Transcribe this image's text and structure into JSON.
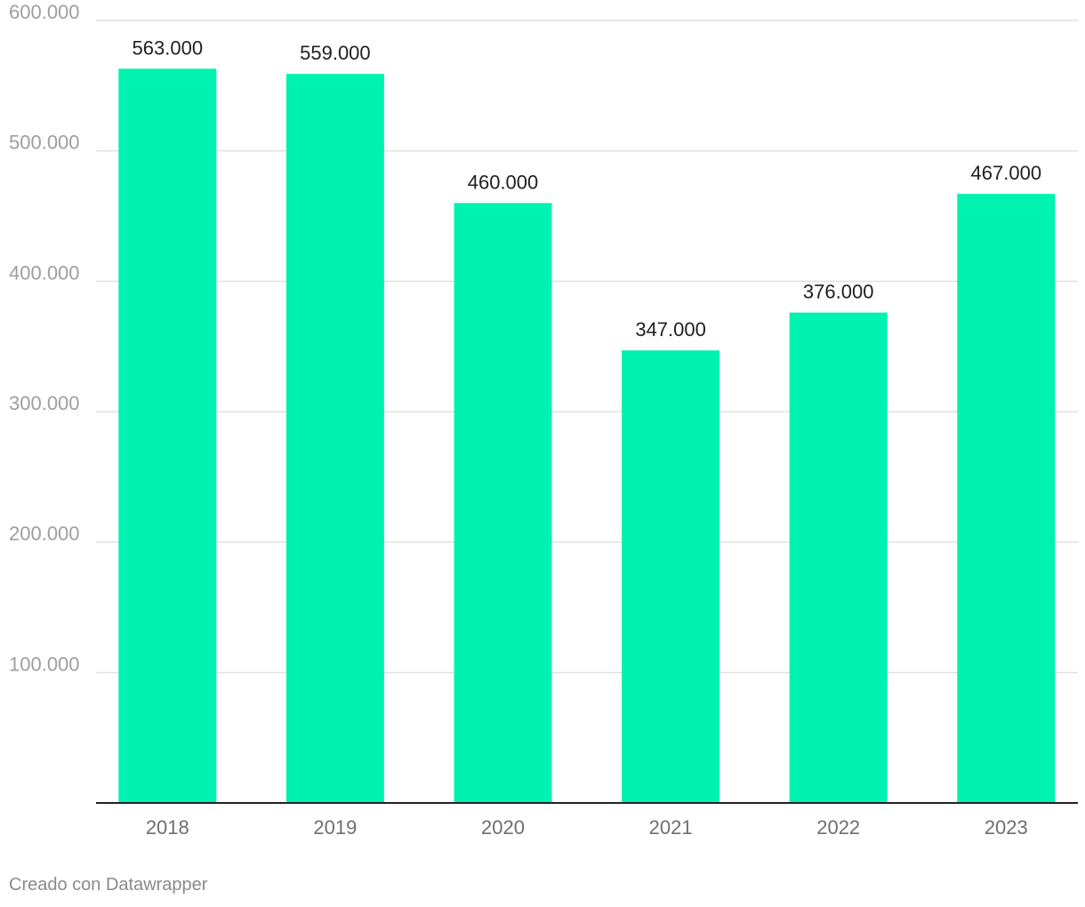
{
  "chart_data": {
    "type": "bar",
    "categories": [
      "2018",
      "2019",
      "2020",
      "2021",
      "2022",
      "2023"
    ],
    "values": [
      563000,
      559000,
      460000,
      347000,
      376000,
      467000
    ],
    "value_labels": [
      "563.000",
      "559.000",
      "460.000",
      "347.000",
      "376.000",
      "467.000"
    ],
    "y_ticks": [
      100000,
      200000,
      300000,
      400000,
      500000,
      600000
    ],
    "y_tick_labels": [
      "100.000",
      "200.000",
      "300.000",
      "400.000",
      "500.000",
      "600.000"
    ],
    "ylim": [
      0,
      600000
    ],
    "grid": true,
    "legend": "none",
    "title": "",
    "xlabel": "",
    "ylabel": ""
  },
  "colors": {
    "bar": "#00f2b1",
    "grid": "#e0e0e0",
    "axis": "#222222",
    "tick_label": "#9e9e9e",
    "category_label": "#6e6e6e",
    "value_label": "#1f1f1f"
  },
  "footer": {
    "credit": "Creado con Datawrapper"
  }
}
